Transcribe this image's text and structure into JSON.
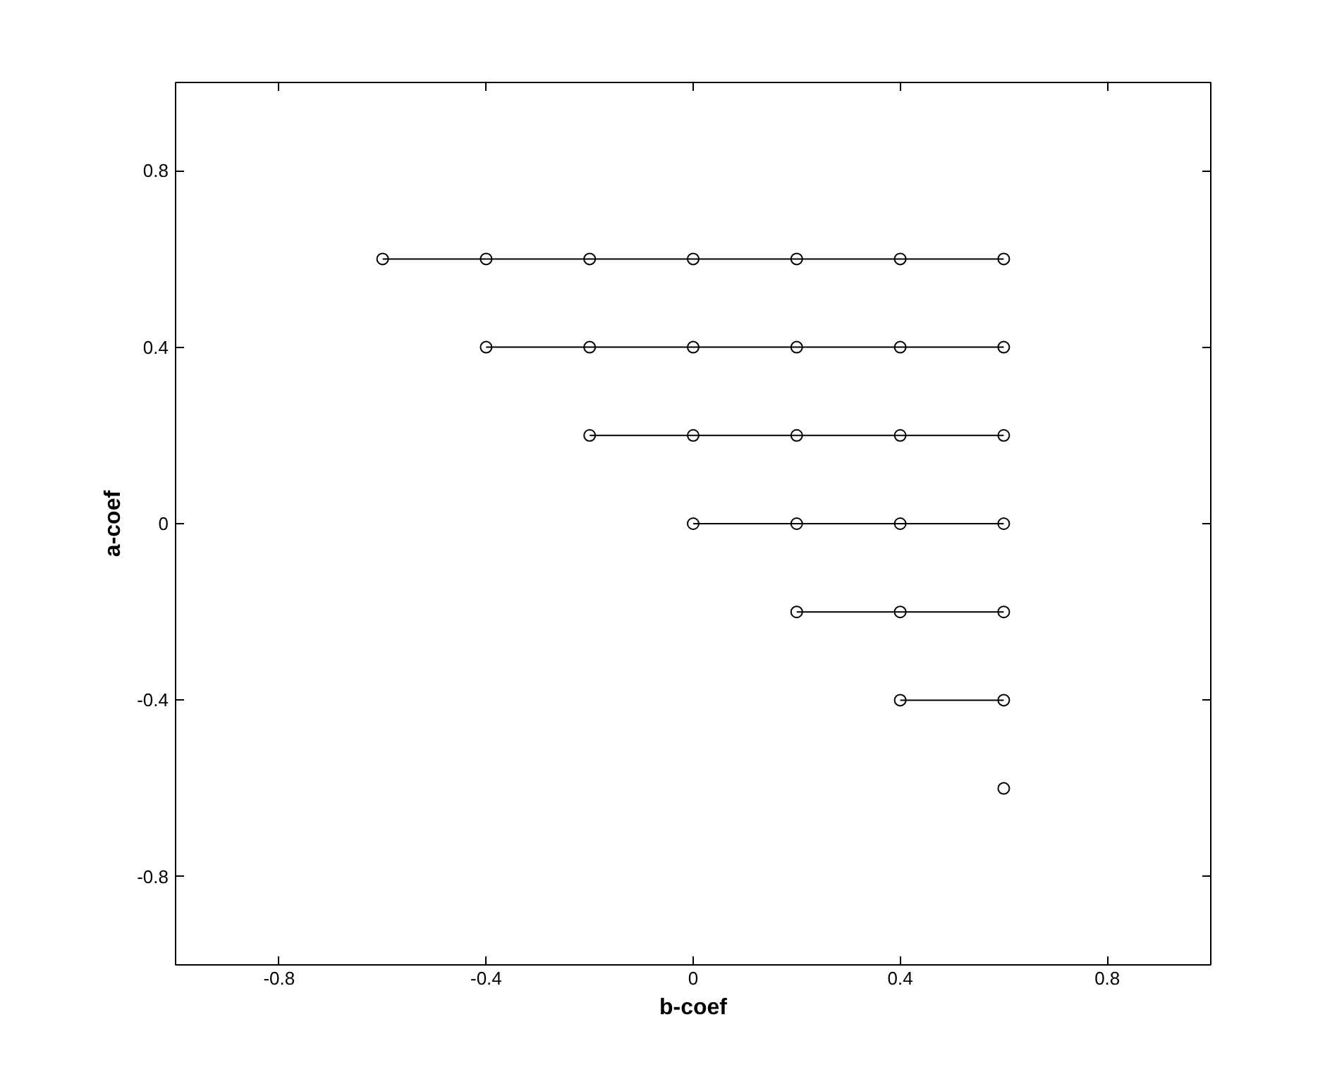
{
  "chart_data": {
    "type": "line",
    "xlabel": "b-coef",
    "ylabel": "a-coef",
    "xlim": [
      -1,
      1
    ],
    "ylim": [
      -1,
      1
    ],
    "xticks": [
      -0.8,
      -0.4,
      0,
      0.4,
      0.8
    ],
    "yticks": [
      -0.8,
      -0.4,
      0,
      0.4,
      0.8
    ],
    "grid": false,
    "marker": "circle",
    "line_style": "solid",
    "series": [
      {
        "color": "#000000",
        "x": [
          -0.6,
          -0.4,
          -0.2,
          0,
          0.2,
          0.4,
          0.6
        ],
        "values": [
          0.6,
          0.6,
          0.6,
          0.6,
          0.6,
          0.6,
          0.6
        ]
      },
      {
        "color": "#000000",
        "x": [
          -0.4,
          -0.2,
          0,
          0.2,
          0.4,
          0.6
        ],
        "values": [
          0.4,
          0.4,
          0.4,
          0.4,
          0.4,
          0.4
        ]
      },
      {
        "color": "#000000",
        "x": [
          -0.2,
          0,
          0.2,
          0.4,
          0.6
        ],
        "values": [
          0.2,
          0.2,
          0.2,
          0.2,
          0.2
        ]
      },
      {
        "color": "#000000",
        "x": [
          0,
          0.2,
          0.4,
          0.6
        ],
        "values": [
          0,
          0,
          0,
          0
        ]
      },
      {
        "color": "#000000",
        "x": [
          0.2,
          0.4,
          0.6
        ],
        "values": [
          -0.2,
          -0.2,
          -0.2
        ]
      },
      {
        "color": "#000000",
        "x": [
          0.4,
          0.6
        ],
        "values": [
          -0.4,
          -0.4
        ]
      },
      {
        "color": "#000000",
        "x": [
          0.6
        ],
        "values": [
          -0.6
        ]
      }
    ]
  }
}
